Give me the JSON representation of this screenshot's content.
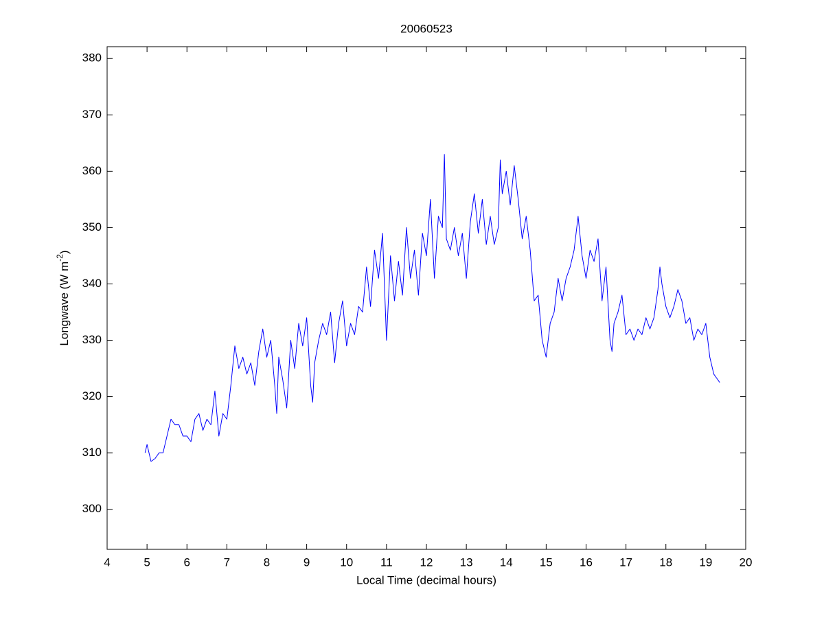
{
  "chart_data": {
    "type": "line",
    "title": "20060523",
    "x_label": "Local Time (decimal hours)",
    "y_label": [
      "Longwave (W m",
      "-2",
      ")"
    ],
    "xlim": [
      4,
      20
    ],
    "xticks": [
      4,
      5,
      6,
      7,
      8,
      9,
      10,
      11,
      12,
      13,
      14,
      15,
      16,
      17,
      18,
      19,
      20
    ],
    "ylim": [
      292.9,
      382.1
    ],
    "yticks": [
      300,
      310,
      320,
      330,
      340,
      350,
      360,
      370,
      380
    ],
    "grid": false,
    "series": [
      {
        "color": "#0000ff",
        "x": [
          4.95,
          5.0,
          5.1,
          5.2,
          5.3,
          5.4,
          5.5,
          5.6,
          5.7,
          5.8,
          5.9,
          6.0,
          6.1,
          6.2,
          6.3,
          6.4,
          6.5,
          6.6,
          6.7,
          6.8,
          6.9,
          7.0,
          7.1,
          7.2,
          7.3,
          7.4,
          7.5,
          7.6,
          7.7,
          7.8,
          7.9,
          8.0,
          8.1,
          8.2,
          8.25,
          8.3,
          8.4,
          8.5,
          8.6,
          8.7,
          8.8,
          8.9,
          9.0,
          9.1,
          9.15,
          9.2,
          9.3,
          9.4,
          9.5,
          9.6,
          9.7,
          9.8,
          9.9,
          10.0,
          10.1,
          10.2,
          10.3,
          10.4,
          10.5,
          10.6,
          10.7,
          10.8,
          10.9,
          11.0,
          11.1,
          11.2,
          11.3,
          11.4,
          11.5,
          11.6,
          11.7,
          11.8,
          11.9,
          12.0,
          12.1,
          12.2,
          12.3,
          12.4,
          12.45,
          12.5,
          12.6,
          12.7,
          12.8,
          12.9,
          13.0,
          13.1,
          13.2,
          13.3,
          13.4,
          13.5,
          13.6,
          13.7,
          13.8,
          13.85,
          13.9,
          14.0,
          14.1,
          14.2,
          14.3,
          14.4,
          14.5,
          14.6,
          14.7,
          14.8,
          14.9,
          15.0,
          15.1,
          15.2,
          15.3,
          15.4,
          15.5,
          15.6,
          15.7,
          15.8,
          15.9,
          16.0,
          16.1,
          16.2,
          16.3,
          16.4,
          16.5,
          16.6,
          16.65,
          16.7,
          16.8,
          16.9,
          17.0,
          17.1,
          17.2,
          17.3,
          17.4,
          17.5,
          17.6,
          17.7,
          17.8,
          17.85,
          17.9,
          18.0,
          18.1,
          18.2,
          18.3,
          18.4,
          18.5,
          18.6,
          18.7,
          18.8,
          18.9,
          19.0,
          19.1,
          19.2,
          19.3,
          19.35
        ],
        "values": [
          310,
          311.5,
          308.5,
          309,
          310,
          310,
          313,
          316,
          315,
          315,
          313,
          313,
          312,
          316,
          317,
          314,
          316,
          315,
          321,
          313,
          317,
          316,
          322,
          329,
          325,
          327,
          324,
          326,
          322,
          328,
          332,
          327,
          330,
          322,
          317,
          327,
          323,
          318,
          330,
          325,
          333,
          329,
          334,
          322,
          319,
          326,
          330,
          333,
          331,
          335,
          326,
          333,
          337,
          329,
          333,
          331,
          336,
          335,
          343,
          336,
          346,
          341,
          349,
          330,
          345,
          337,
          344,
          338,
          350,
          341,
          346,
          338,
          349,
          345,
          355,
          341,
          352,
          350,
          363,
          348,
          346,
          350,
          345,
          349,
          341,
          351,
          356,
          349,
          355,
          347,
          352,
          347,
          350,
          362,
          356,
          360,
          354,
          361,
          355,
          348,
          352,
          346,
          337,
          338,
          330,
          327,
          333,
          335,
          341,
          337,
          341,
          343,
          346,
          352,
          345,
          341,
          346,
          344,
          348,
          337,
          343,
          330,
          328,
          333,
          335,
          338,
          331,
          332,
          330,
          332,
          331,
          334,
          332,
          334,
          339,
          343,
          340,
          336,
          334,
          336,
          339,
          337,
          333,
          334,
          330,
          332,
          331,
          333,
          327,
          324,
          323,
          322.5
        ]
      }
    ]
  }
}
